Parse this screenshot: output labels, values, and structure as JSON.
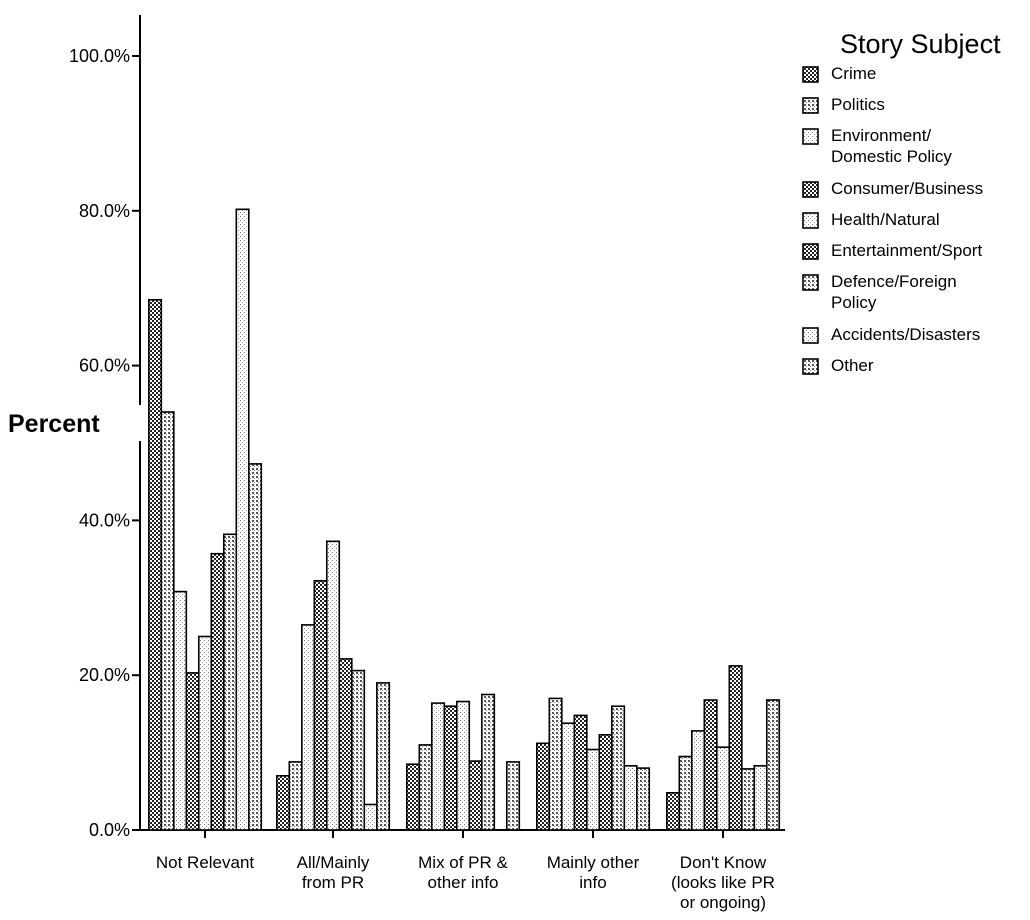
{
  "chart_data": {
    "type": "bar",
    "ylabel": "Percent",
    "xlabel": "",
    "ylim": [
      0,
      100
    ],
    "yticks": [
      "0.0%",
      "20.0%",
      "40.0%",
      "60.0%",
      "80.0%",
      "100.0%"
    ],
    "ytick_values": [
      0,
      20,
      40,
      60,
      80,
      100
    ],
    "categories": [
      [
        "Not Relevant"
      ],
      [
        "All/Mainly",
        "from PR"
      ],
      [
        "Mix of PR &",
        "other info"
      ],
      [
        "Mainly other",
        "info"
      ],
      [
        "Don't Know",
        "(looks like PR",
        "or ongoing)"
      ]
    ],
    "legend_title": "Story Subject",
    "legend_position": "right",
    "series": [
      {
        "name": [
          "Crime"
        ],
        "values": [
          68.5,
          7.0,
          8.5,
          11.2,
          4.8
        ]
      },
      {
        "name": [
          "Politics"
        ],
        "values": [
          54.0,
          8.8,
          11.0,
          17.0,
          9.5
        ]
      },
      {
        "name": [
          "Environment/",
          "Domestic Policy"
        ],
        "values": [
          30.8,
          26.5,
          16.4,
          13.8,
          12.8
        ]
      },
      {
        "name": [
          "Consumer/Business"
        ],
        "values": [
          20.3,
          32.2,
          16.0,
          14.8,
          16.8
        ]
      },
      {
        "name": [
          "Health/Natural"
        ],
        "values": [
          25.0,
          37.3,
          16.6,
          10.4,
          10.7
        ]
      },
      {
        "name": [
          "Entertainment/Sport"
        ],
        "values": [
          35.7,
          22.1,
          8.9,
          12.3,
          21.2
        ]
      },
      {
        "name": [
          "Defence/Foreign",
          "Policy"
        ],
        "values": [
          38.2,
          20.6,
          17.5,
          16.0,
          7.9
        ]
      },
      {
        "name": [
          "Accidents/Disasters"
        ],
        "values": [
          80.2,
          3.3,
          0,
          8.3,
          8.3
        ]
      },
      {
        "name": [
          "Other"
        ],
        "values": [
          47.3,
          19.0,
          8.8,
          8.0,
          16.8
        ]
      }
    ]
  }
}
